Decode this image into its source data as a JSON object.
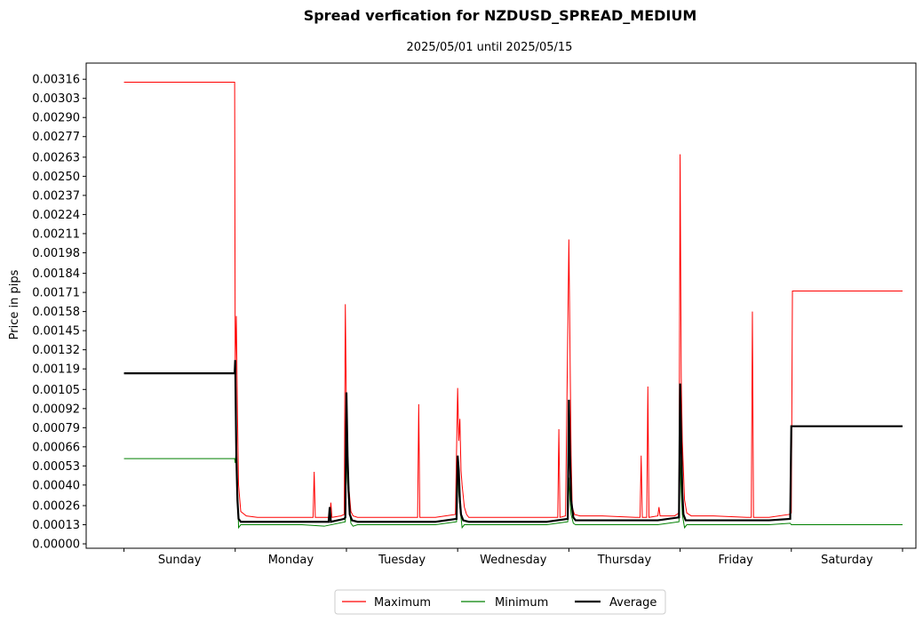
{
  "chart_data": {
    "type": "line",
    "title": "Spread verfication for NZDUSD_SPREAD_MEDIUM",
    "subtitle": "2025/05/01 until 2025/05/15",
    "ylabel": "Price in pips",
    "xlabel": "",
    "categories": [
      "Sunday",
      "Monday",
      "Tuesday",
      "Wednesday",
      "Thursday",
      "Friday",
      "Saturday"
    ],
    "y_ticks": [
      "0.00000",
      "0.00013",
      "0.00026",
      "0.00040",
      "0.00053",
      "0.00066",
      "0.00079",
      "0.00092",
      "0.00105",
      "0.00119",
      "0.00132",
      "0.00145",
      "0.00158",
      "0.00171",
      "0.00184",
      "0.00198",
      "0.00211",
      "0.00224",
      "0.00237",
      "0.00250",
      "0.00263",
      "0.00277",
      "0.00290",
      "0.00303",
      "0.00316"
    ],
    "ylim": [
      -3e-05,
      0.00327
    ],
    "xlim": [
      -0.34,
      7.12
    ],
    "grid": false,
    "legend_position": "bottom-center",
    "series": [
      {
        "name": "Maximum",
        "color": "#ff0000",
        "width": 1,
        "x": [
          0,
          0.995,
          1.0,
          1.01,
          1.02,
          1.03,
          1.05,
          1.1,
          1.2,
          1.5,
          1.7,
          1.71,
          1.72,
          1.8,
          1.85,
          1.86,
          1.87,
          1.95,
          1.98,
          1.99,
          2.0,
          2.01,
          2.02,
          2.04,
          2.06,
          2.1,
          2.3,
          2.6,
          2.64,
          2.65,
          2.66,
          2.8,
          2.98,
          3.0,
          3.01,
          3.02,
          3.03,
          3.04,
          3.06,
          3.08,
          3.1,
          3.3,
          3.5,
          3.8,
          3.9,
          3.91,
          3.92,
          3.97,
          4.0,
          4.01,
          4.02,
          4.03,
          4.05,
          4.1,
          4.3,
          4.6,
          4.64,
          4.65,
          4.66,
          4.7,
          4.71,
          4.72,
          4.8,
          4.81,
          4.82,
          4.95,
          4.99,
          5.0,
          5.01,
          5.02,
          5.04,
          5.06,
          5.1,
          5.3,
          5.6,
          5.64,
          5.65,
          5.66,
          5.8,
          5.98,
          6.0,
          6.01,
          6.02,
          7.0
        ],
        "y": [
          0.00314,
          0.00314,
          0.0012,
          0.00155,
          0.0009,
          0.0004,
          0.00022,
          0.00019,
          0.00018,
          0.00018,
          0.00018,
          0.00049,
          0.00018,
          0.00018,
          0.00018,
          0.00028,
          0.00018,
          0.00019,
          0.0002,
          0.00163,
          0.0009,
          0.00063,
          0.0004,
          0.00022,
          0.00019,
          0.00018,
          0.00018,
          0.00018,
          0.00018,
          0.00095,
          0.00018,
          0.00018,
          0.0002,
          0.00106,
          0.0007,
          0.00085,
          0.0005,
          0.0004,
          0.00025,
          0.0002,
          0.00018,
          0.00018,
          0.00018,
          0.00018,
          0.00018,
          0.00078,
          0.00018,
          0.00019,
          0.00207,
          0.00133,
          0.0006,
          0.00025,
          0.0002,
          0.00019,
          0.00019,
          0.00018,
          0.00018,
          0.0006,
          0.00018,
          0.00018,
          0.00107,
          0.00018,
          0.00019,
          0.00025,
          0.00019,
          0.00019,
          0.00021,
          0.00265,
          0.00113,
          0.0007,
          0.0003,
          0.00021,
          0.00019,
          0.00019,
          0.00018,
          0.00018,
          0.00158,
          0.00018,
          0.00018,
          0.0002,
          0.00021,
          0.00172,
          0.00172,
          0.00172
        ]
      },
      {
        "name": "Minimum",
        "color": "#008000",
        "width": 1,
        "x": [
          0,
          0.995,
          1.0,
          1.01,
          1.02,
          1.03,
          1.05,
          1.1,
          1.2,
          1.4,
          1.6,
          1.8,
          1.99,
          2.0,
          2.01,
          2.02,
          2.04,
          2.06,
          2.1,
          2.3,
          2.6,
          2.8,
          2.99,
          3.0,
          3.01,
          3.02,
          3.04,
          3.06,
          3.1,
          3.3,
          3.6,
          3.8,
          3.99,
          4.0,
          4.01,
          4.02,
          4.04,
          4.06,
          4.1,
          4.3,
          4.6,
          4.8,
          4.99,
          5.0,
          5.01,
          5.02,
          5.04,
          5.06,
          5.1,
          5.3,
          5.6,
          5.8,
          5.99,
          6.0,
          6.02,
          7.0
        ],
        "y": [
          0.00058,
          0.00058,
          0.00055,
          0.00065,
          0.0004,
          0.00011,
          0.00013,
          0.00013,
          0.00013,
          0.00013,
          0.00013,
          0.00012,
          0.00015,
          0.00065,
          0.00042,
          0.0003,
          0.00014,
          0.00012,
          0.00013,
          0.00013,
          0.00013,
          0.00013,
          0.00015,
          0.00058,
          0.00035,
          0.00025,
          0.00011,
          0.00013,
          0.00013,
          0.00013,
          0.00013,
          0.00013,
          0.00015,
          0.00045,
          0.0003,
          0.0002,
          0.00014,
          0.00013,
          0.00013,
          0.00013,
          0.00013,
          0.00013,
          0.00015,
          0.0006,
          0.00035,
          0.0002,
          0.00011,
          0.00013,
          0.00013,
          0.00013,
          0.00013,
          0.00013,
          0.00014,
          0.00013,
          0.00013,
          0.00013
        ]
      },
      {
        "name": "Average",
        "color": "#000000",
        "width": 2.2,
        "x": [
          0,
          0.995,
          1.0,
          1.01,
          1.02,
          1.03,
          1.05,
          1.1,
          1.2,
          1.4,
          1.6,
          1.8,
          1.84,
          1.85,
          1.86,
          1.98,
          1.99,
          2.0,
          2.01,
          2.02,
          2.03,
          2.05,
          2.1,
          2.3,
          2.6,
          2.8,
          2.99,
          3.0,
          3.01,
          3.02,
          3.03,
          3.05,
          3.1,
          3.3,
          3.6,
          3.8,
          3.99,
          4.0,
          4.01,
          4.02,
          4.04,
          4.06,
          4.1,
          4.3,
          4.6,
          4.8,
          4.99,
          5.0,
          5.01,
          5.02,
          5.03,
          5.05,
          5.1,
          5.3,
          5.6,
          5.8,
          5.99,
          6.0,
          6.02,
          7.0
        ],
        "y": [
          0.00116,
          0.00116,
          0.00125,
          0.0006,
          0.0003,
          0.00017,
          0.00015,
          0.00015,
          0.00015,
          0.00015,
          0.00015,
          0.00015,
          0.00015,
          0.00025,
          0.00015,
          0.00017,
          0.00018,
          0.00103,
          0.0006,
          0.00035,
          0.0002,
          0.00016,
          0.00015,
          0.00015,
          0.00015,
          0.00015,
          0.00017,
          0.0006,
          0.0005,
          0.0003,
          0.0002,
          0.00016,
          0.00015,
          0.00015,
          0.00015,
          0.00015,
          0.00017,
          0.00098,
          0.0006,
          0.0003,
          0.00018,
          0.00016,
          0.00016,
          0.00016,
          0.00016,
          0.00016,
          0.00018,
          0.00109,
          0.0007,
          0.00035,
          0.0002,
          0.00016,
          0.00016,
          0.00016,
          0.00016,
          0.00016,
          0.00017,
          0.0008,
          0.0008,
          0.0008
        ]
      }
    ]
  }
}
